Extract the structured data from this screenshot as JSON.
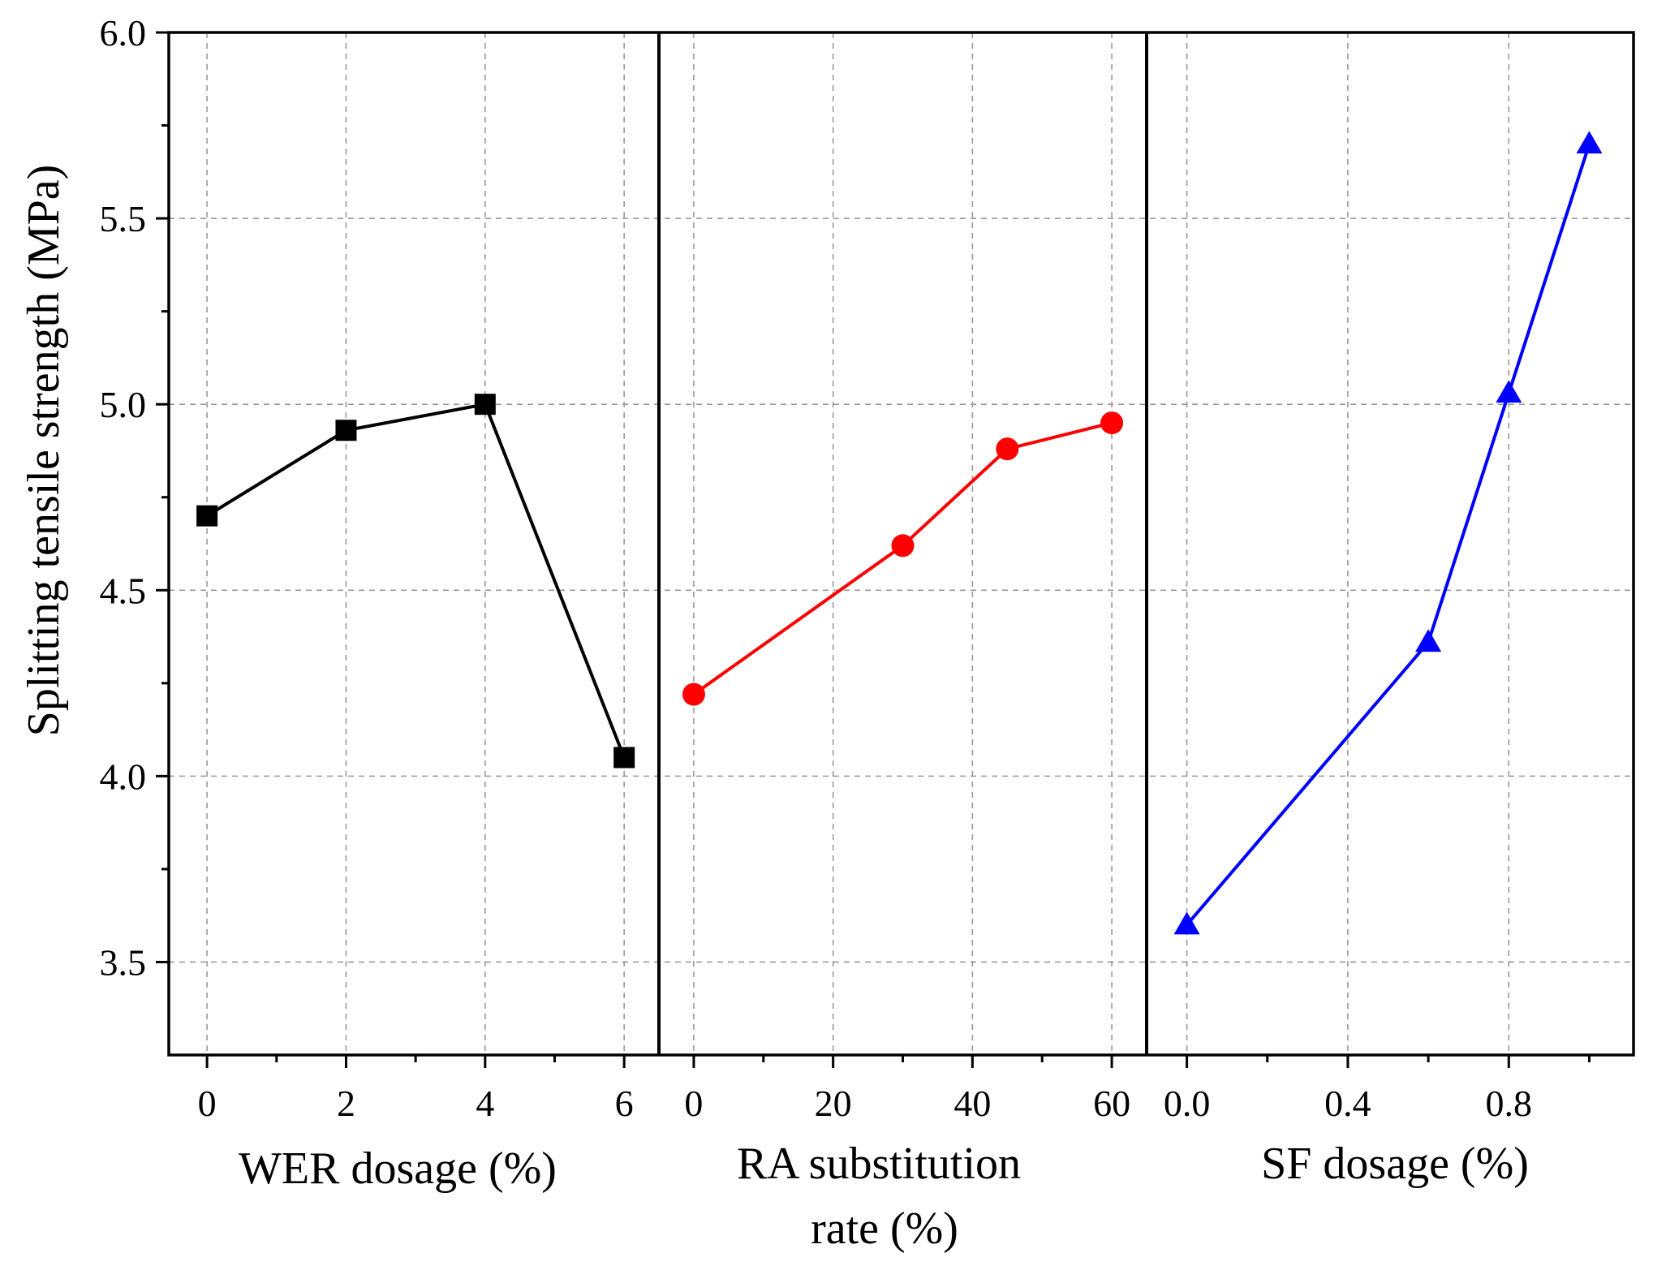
{
  "chart_data": {
    "type": "line",
    "ylabel": "Splitting tensile strength (MPa)",
    "ylim": [
      3.25,
      6.0
    ],
    "yticks": [
      3.5,
      4.0,
      4.5,
      5.0,
      5.5,
      6.0
    ],
    "ytick_labels": [
      "3.5",
      "4.0",
      "4.5",
      "5.0",
      "5.5",
      "6.0"
    ],
    "grid": true,
    "panels": [
      {
        "xlabel": "WER dosage (%)",
        "xlim": [
          -0.55,
          6.5
        ],
        "xticks": [
          0,
          2,
          4,
          6
        ],
        "xtick_labels": [
          "0",
          "2",
          "4",
          "6"
        ],
        "minor_xticks": [
          1,
          3,
          5
        ],
        "series": {
          "name": "WER",
          "color": "#000000",
          "marker": "square",
          "x": [
            0,
            2,
            4,
            6
          ],
          "y": [
            4.7,
            4.93,
            5.0,
            4.05
          ]
        }
      },
      {
        "xlabel_lines": [
          "RA substitution",
          "rate (%)"
        ],
        "xlim": [
          -5,
          65
        ],
        "xticks": [
          0,
          20,
          40,
          60
        ],
        "xtick_labels": [
          "0",
          "20",
          "40",
          "60"
        ],
        "minor_xticks": [
          10,
          30,
          50
        ],
        "series": {
          "name": "RA",
          "color": "#ff0000",
          "marker": "circle",
          "x": [
            0,
            30,
            45,
            60
          ],
          "y": [
            4.22,
            4.62,
            4.88,
            4.95
          ]
        }
      },
      {
        "xlabel": "SF dosage (%)",
        "xlim": [
          -0.1,
          1.11
        ],
        "xticks": [
          0.0,
          0.4,
          0.8
        ],
        "xtick_labels": [
          "0.0",
          "0.4",
          "0.8"
        ],
        "minor_xticks": [
          0.2,
          0.6,
          1.0
        ],
        "series": {
          "name": "SF",
          "color": "#0000ff",
          "marker": "triangle",
          "x": [
            0.0,
            0.6,
            0.8,
            1.0
          ],
          "y": [
            3.6,
            4.36,
            5.03,
            5.7
          ]
        }
      }
    ]
  }
}
